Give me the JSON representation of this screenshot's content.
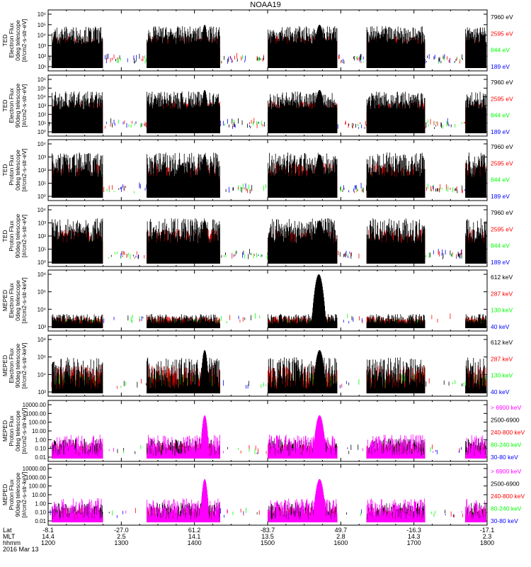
{
  "title": "NOAA19",
  "colors": {
    "blue": "#0000ff",
    "red": "#ff0000",
    "green": "#00ff00",
    "black": "#000000",
    "magenta": "#ff00ff"
  },
  "chart_data": [
    {
      "type": "line",
      "panel": 1,
      "ylabel": [
        "TED",
        "Electron Flux",
        "0deg telescope",
        "[#/cm2-s-str-eV]"
      ],
      "ylim": [
        1,
        1000000
      ],
      "yscale": "log",
      "yticks": [
        "10¹",
        "10²",
        "10³",
        "10⁴",
        "10⁵",
        "10⁶"
      ],
      "series": [
        {
          "name": "7960 eV",
          "color": "black"
        },
        {
          "name": "2595 eV",
          "color": "red"
        },
        {
          "name": "844 eV",
          "color": "green"
        },
        {
          "name": "189 eV",
          "color": "blue"
        }
      ]
    },
    {
      "type": "line",
      "panel": 2,
      "ylabel": [
        "TED",
        "Electron Flux",
        "90deg telescope",
        "[#/cm2-s-str-eV]"
      ],
      "ylim": [
        1,
        1000000
      ],
      "yscale": "log",
      "yticks": [
        "10⁰",
        "10¹",
        "10²",
        "10³",
        "10⁴",
        "10⁵",
        "10⁶"
      ],
      "series": [
        {
          "name": "7960 eV",
          "color": "black"
        },
        {
          "name": "2595 eV",
          "color": "red"
        },
        {
          "name": "844 eV",
          "color": "green"
        },
        {
          "name": "189 eV",
          "color": "blue"
        }
      ]
    },
    {
      "type": "line",
      "panel": 3,
      "ylabel": [
        "TED",
        "Proton Flux",
        "0deg telescope",
        "[#/cm2-s-str-eV]"
      ],
      "ylim": [
        1,
        10000
      ],
      "yscale": "log",
      "yticks": [
        "10⁰",
        "10¹",
        "10²",
        "10³",
        "10⁴"
      ],
      "series": [
        {
          "name": "7960 eV",
          "color": "black"
        },
        {
          "name": "2595 eV",
          "color": "red"
        },
        {
          "name": "844 eV",
          "color": "green"
        },
        {
          "name": "189 eV",
          "color": "blue"
        }
      ]
    },
    {
      "type": "line",
      "panel": 4,
      "ylabel": [
        "TED",
        "Proton Flux",
        "90deg telescope",
        "[#/cm2-s-str-eV]"
      ],
      "ylim": [
        1,
        10000
      ],
      "yscale": "log",
      "yticks": [
        "10⁰",
        "10¹",
        "10²",
        "10³",
        "10⁴"
      ],
      "series": [
        {
          "name": "7960 eV",
          "color": "black"
        },
        {
          "name": "2595 eV",
          "color": "red"
        },
        {
          "name": "844 eV",
          "color": "green"
        },
        {
          "name": "189 eV",
          "color": "blue"
        }
      ]
    },
    {
      "type": "line",
      "panel": 5,
      "ylabel": [
        "MEPED",
        "Electron Flux",
        "0deg telescope",
        "[#/cm2-s-str-keV]"
      ],
      "ylim": [
        10,
        100000000
      ],
      "yscale": "log",
      "yticks": [
        "10²",
        "10⁴",
        "10⁶",
        "10⁸"
      ],
      "series": [
        {
          "name": "612 keV",
          "color": "black"
        },
        {
          "name": "287 keV",
          "color": "red"
        },
        {
          "name": "130 keV",
          "color": "green"
        },
        {
          "name": "40 keV",
          "color": "blue"
        }
      ]
    },
    {
      "type": "line",
      "panel": 6,
      "ylabel": [
        "MEPED",
        "Electron Flux",
        "90deg telescope",
        "[#/cm2-s-str-keV]"
      ],
      "ylim": [
        10,
        100000000
      ],
      "yscale": "log",
      "yticks": [
        "10²",
        "10⁴",
        "10⁶",
        "10⁸"
      ],
      "series": [
        {
          "name": "612 keV",
          "color": "black"
        },
        {
          "name": "287 keV",
          "color": "red"
        },
        {
          "name": "130 keV",
          "color": "green"
        },
        {
          "name": "40 keV",
          "color": "blue"
        }
      ]
    },
    {
      "type": "line",
      "panel": 7,
      "ylabel": [
        "MEPED",
        "Proton Flux",
        "0deg telescope",
        "[#/cm2-s-str-keV]"
      ],
      "ylim": [
        0.005,
        20000
      ],
      "yscale": "log",
      "yticks": [
        "0.01",
        "0.10",
        "1.00",
        "10.00",
        "100.00",
        "1000.00",
        "10000.00"
      ],
      "series": [
        {
          "name": "> 6900 keV",
          "color": "magenta"
        },
        {
          "name": "2500-6900",
          "color": "black"
        },
        {
          "name": "240-800 keV",
          "color": "red"
        },
        {
          "name": "80-240 keV",
          "color": "green"
        },
        {
          "name": "30-80 keV",
          "color": "blue"
        }
      ]
    },
    {
      "type": "line",
      "panel": 8,
      "ylabel": [
        "MEPED",
        "Proton Flux",
        "90deg telescope",
        "[#/cm2-s-str-keV]"
      ],
      "ylim": [
        0.005,
        20000
      ],
      "yscale": "log",
      "yticks": [
        "0.01",
        "0.10",
        "1.00",
        "10.00",
        "100.00",
        "1000.00",
        "10000.00"
      ],
      "series": [
        {
          "name": "> 6900 keV",
          "color": "magenta"
        },
        {
          "name": "2500-6900",
          "color": "black"
        },
        {
          "name": "240-800 keV",
          "color": "red"
        },
        {
          "name": "80-240 keV",
          "color": "green"
        },
        {
          "name": "30-80 keV",
          "color": "blue"
        }
      ]
    }
  ],
  "x_axis": {
    "row_labels": [
      "Lat",
      "MLT",
      "hhmm"
    ],
    "date": "2016 Mar 13",
    "ticks": [
      {
        "lat": "-8.1",
        "mlt": "14.4",
        "hhmm": "1200"
      },
      {
        "lat": "-27.0",
        "mlt": "2.5",
        "hhmm": "1300"
      },
      {
        "lat": "61.2",
        "mlt": "14.1",
        "hhmm": "1400"
      },
      {
        "lat": "-83.7",
        "mlt": "13.5",
        "hhmm": "1500"
      },
      {
        "lat": "49.7",
        "mlt": "2.8",
        "hhmm": "1600"
      },
      {
        "lat": "-16.3",
        "mlt": "14.3",
        "hhmm": "1700"
      },
      {
        "lat": "-17.1",
        "mlt": "2.3",
        "hhmm": "1800"
      }
    ]
  }
}
